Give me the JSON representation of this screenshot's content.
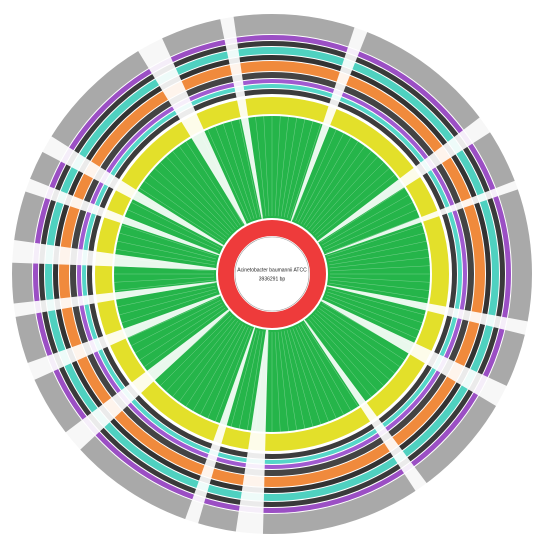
{
  "diagram": {
    "center_label": {
      "name": "Acinetobacter baumannii ATCC",
      "length": "3936291 bp"
    }
  }
}
